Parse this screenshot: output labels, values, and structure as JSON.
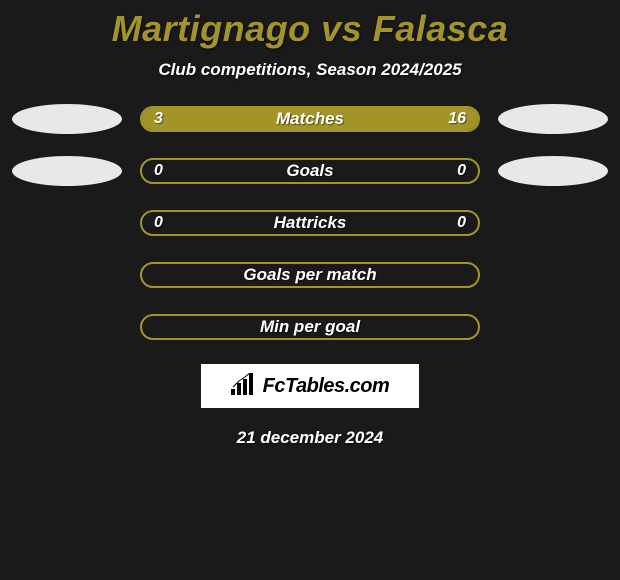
{
  "title_color": "#a29429",
  "header": {
    "player1": "Martignago",
    "vs": "vs",
    "player2": "Falasca"
  },
  "subtitle": "Club competitions, Season 2024/2025",
  "colors": {
    "bar_accent": "#a29429",
    "bar_border": "#a29429",
    "background": "#1a1a1a",
    "badge_left": "#e8e8e8",
    "badge_right": "#e8e8e8",
    "text": "#ffffff"
  },
  "bars": [
    {
      "label": "Matches",
      "left_value": "3",
      "right_value": "16",
      "left_pct": 16,
      "right_pct": 84,
      "show_badges": true,
      "show_values": true
    },
    {
      "label": "Goals",
      "left_value": "0",
      "right_value": "0",
      "left_pct": 0,
      "right_pct": 0,
      "show_badges": true,
      "show_values": true
    },
    {
      "label": "Hattricks",
      "left_value": "0",
      "right_value": "0",
      "left_pct": 0,
      "right_pct": 0,
      "show_badges": false,
      "show_values": true
    },
    {
      "label": "Goals per match",
      "left_value": "",
      "right_value": "",
      "left_pct": 0,
      "right_pct": 0,
      "show_badges": false,
      "show_values": false
    },
    {
      "label": "Min per goal",
      "left_value": "",
      "right_value": "",
      "left_pct": 0,
      "right_pct": 0,
      "show_badges": false,
      "show_values": false
    }
  ],
  "logo": {
    "text": "FcTables.com"
  },
  "date": "21 december 2024"
}
